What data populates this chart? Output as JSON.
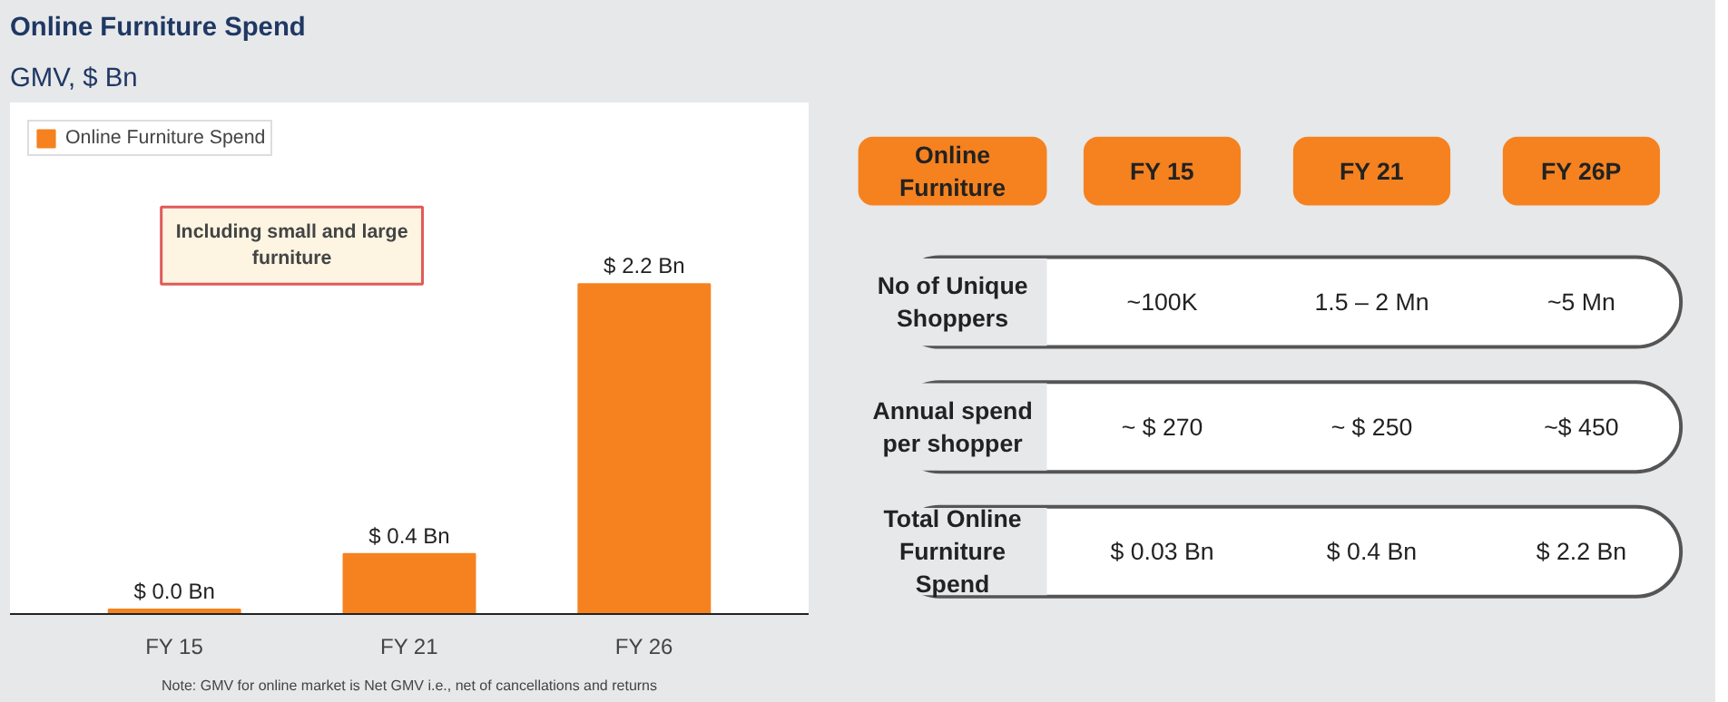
{
  "chart_data": [
    {
      "type": "bar",
      "title": "Online Furniture Spend",
      "subtitle": "GMV, $ Bn",
      "categories": [
        "FY 15",
        "FY 21",
        "FY 26"
      ],
      "series": [
        {
          "name": "Online Furniture Spend",
          "color": "#f5821f",
          "values": [
            0.03,
            0.4,
            2.2
          ],
          "value_labels": [
            "$ 0.0 Bn",
            "$ 0.4 Bn",
            "$ 2.2 Bn"
          ]
        }
      ],
      "tick_labels": "x",
      "legend": "top left",
      "grid": false,
      "annotations": [
        "Including small and large furniture",
        "Note: GMV for online market is Net GMV i.e., net of cancellations and returns"
      ]
    },
    {
      "type": "other",
      "categories": [
        "Online Furniture",
        "FY 15",
        "FY 21",
        "FY 26P"
      ],
      "y_categories": [
        "No of Unique Shoppers",
        "Annual spend per shopper",
        "Total Online Furniture Spend"
      ],
      "cell_labels": [
        [
          "~100K",
          "1.5 – 2 Mn",
          "~5 Mn"
        ],
        [
          "~ $ 270",
          "~ $ 250",
          "~$ 450"
        ],
        [
          "$ 0.03 Bn",
          "$ 0.4 Bn",
          "$ 2.2 Bn"
        ]
      ]
    }
  ]
}
